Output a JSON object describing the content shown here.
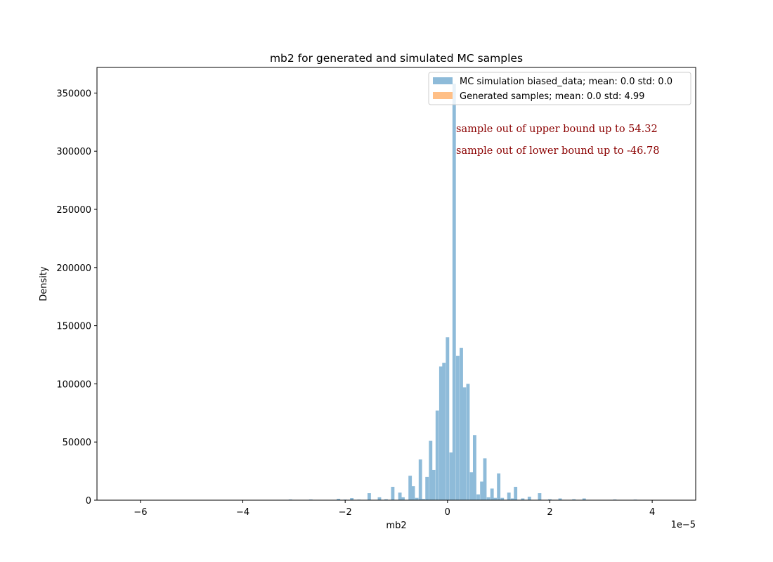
{
  "chart_data": {
    "type": "bar",
    "title": "mb2 for generated and simulated MC samples",
    "xlabel": "mb2",
    "ylabel": "Density",
    "x_offset_label": "1e−5",
    "xlim": [
      -6.85,
      4.85
    ],
    "ylim": [
      0,
      372000
    ],
    "x_ticks": [
      -6,
      -4,
      -2,
      0,
      2,
      4
    ],
    "y_ticks": [
      0,
      50000,
      100000,
      150000,
      200000,
      250000,
      300000,
      350000
    ],
    "grid": false,
    "legend_placement": "upper right",
    "bin_width": 0.0667,
    "series": [
      {
        "name": "MC simulation biased_data; mean: 0.0 std: 0.0",
        "color": "#8ebbd9",
        "bins": [
          {
            "x": -3.07,
            "y": 600
          },
          {
            "x": -2.67,
            "y": 600
          },
          {
            "x": -2.13,
            "y": 1200
          },
          {
            "x": -2.0,
            "y": 500
          },
          {
            "x": -1.87,
            "y": 1800
          },
          {
            "x": -1.73,
            "y": 500
          },
          {
            "x": -1.53,
            "y": 6000
          },
          {
            "x": -1.33,
            "y": 2500
          },
          {
            "x": -1.2,
            "y": 800
          },
          {
            "x": -1.07,
            "y": 11500
          },
          {
            "x": -0.93,
            "y": 6500
          },
          {
            "x": -0.87,
            "y": 2500
          },
          {
            "x": -0.73,
            "y": 21000
          },
          {
            "x": -0.67,
            "y": 12000
          },
          {
            "x": -0.6,
            "y": 2000
          },
          {
            "x": -0.53,
            "y": 35000
          },
          {
            "x": -0.47,
            "y": 1000
          },
          {
            "x": -0.4,
            "y": 20000
          },
          {
            "x": -0.33,
            "y": 51000
          },
          {
            "x": -0.27,
            "y": 26000
          },
          {
            "x": -0.2,
            "y": 77000
          },
          {
            "x": -0.13,
            "y": 115000
          },
          {
            "x": -0.07,
            "y": 118000
          },
          {
            "x": -0.0,
            "y": 140000
          },
          {
            "x": 0.07,
            "y": 41000
          },
          {
            "x": 0.13,
            "y": 358000
          },
          {
            "x": 0.2,
            "y": 124000
          },
          {
            "x": 0.27,
            "y": 131000
          },
          {
            "x": 0.33,
            "y": 97000
          },
          {
            "x": 0.4,
            "y": 100000
          },
          {
            "x": 0.47,
            "y": 24000
          },
          {
            "x": 0.53,
            "y": 56000
          },
          {
            "x": 0.6,
            "y": 5000
          },
          {
            "x": 0.67,
            "y": 16000
          },
          {
            "x": 0.73,
            "y": 36000
          },
          {
            "x": 0.8,
            "y": 2500
          },
          {
            "x": 0.87,
            "y": 10000
          },
          {
            "x": 0.93,
            "y": 2000
          },
          {
            "x": 1.0,
            "y": 23000
          },
          {
            "x": 1.07,
            "y": 2000
          },
          {
            "x": 1.2,
            "y": 6500
          },
          {
            "x": 1.27,
            "y": 1500
          },
          {
            "x": 1.33,
            "y": 11500
          },
          {
            "x": 1.47,
            "y": 1500
          },
          {
            "x": 1.6,
            "y": 3000
          },
          {
            "x": 1.8,
            "y": 6000
          },
          {
            "x": 2.0,
            "y": 800
          },
          {
            "x": 2.2,
            "y": 1500
          },
          {
            "x": 2.47,
            "y": 800
          },
          {
            "x": 2.67,
            "y": 1500
          },
          {
            "x": 3.27,
            "y": 600
          },
          {
            "x": 3.67,
            "y": 500
          }
        ]
      },
      {
        "name": "Generated samples; mean: 0.0 std: 4.99",
        "color": "#ffbf86",
        "bins": []
      }
    ],
    "annotations": [
      {
        "text": "sample out of upper bound up to 54.32"
      },
      {
        "text": "sample out of lower bound up to -46.78"
      }
    ]
  }
}
